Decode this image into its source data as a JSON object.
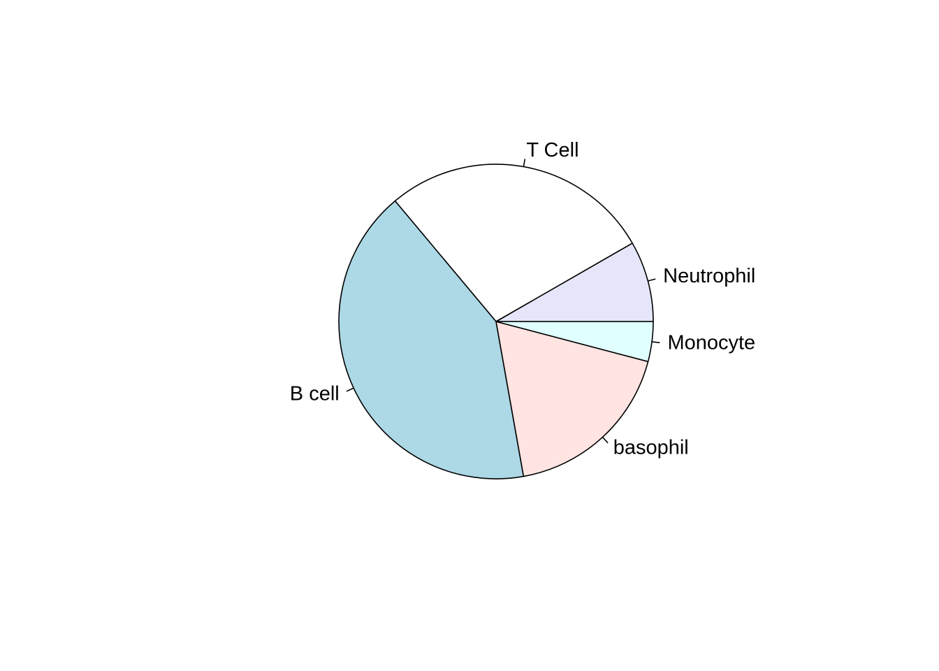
{
  "chart_data": {
    "type": "pie",
    "title": "",
    "labels": [
      "Neutrophil",
      "T Cell",
      "B cell",
      "basophil",
      "Monocyte"
    ],
    "values": [
      8.3,
      27.8,
      41.7,
      18.1,
      4.1
    ],
    "colors": [
      "#E6E6FA",
      "#FFFFFF",
      "#ADD8E6",
      "#FFE4E1",
      "#E0FFFF"
    ],
    "start_angle_deg": 0,
    "direction": "counterclockwise",
    "legend": "none"
  }
}
